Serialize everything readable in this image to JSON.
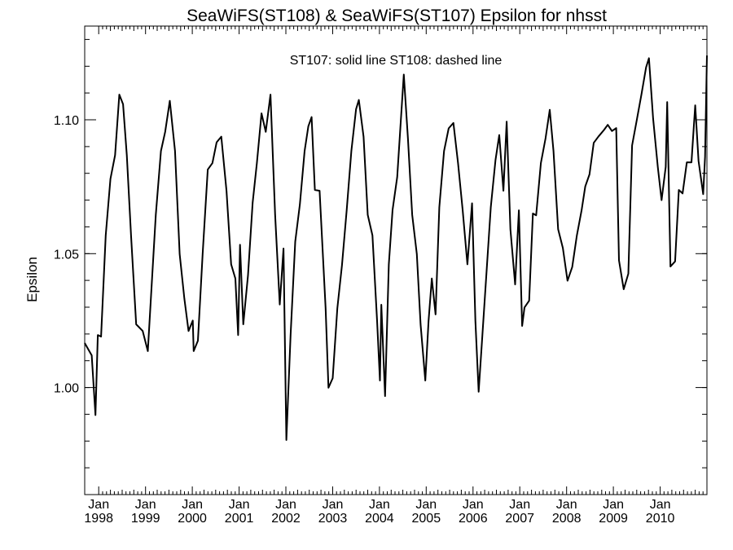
{
  "chart_data": {
    "type": "line",
    "title": "SeaWiFS(ST108) & SeaWiFS(ST107)  Epsilon for nhsst",
    "annotation": "ST107: solid line   ST108: dashed line",
    "xlabel": "",
    "ylabel": "Epsilon",
    "xlim": [
      1997.7,
      2011.0
    ],
    "ylim": [
      0.96,
      1.135
    ],
    "y_ticks": [
      1.0,
      1.05,
      1.1
    ],
    "y_tick_labels": [
      "1.00",
      "1.05",
      "1.10"
    ],
    "y_minor_step": 0.01,
    "x_ticks": [
      {
        "value": 1998,
        "month": "Jan",
        "year": "1998"
      },
      {
        "value": 1999,
        "month": "Jan",
        "year": "1999"
      },
      {
        "value": 2000,
        "month": "Jan",
        "year": "2000"
      },
      {
        "value": 2001,
        "month": "Jan",
        "year": "2001"
      },
      {
        "value": 2002,
        "month": "Jan",
        "year": "2002"
      },
      {
        "value": 2003,
        "month": "Jan",
        "year": "2003"
      },
      {
        "value": 2004,
        "month": "Jan",
        "year": "2004"
      },
      {
        "value": 2005,
        "month": "Jan",
        "year": "2005"
      },
      {
        "value": 2006,
        "month": "Jan",
        "year": "2006"
      },
      {
        "value": 2007,
        "month": "Jan",
        "year": "2007"
      },
      {
        "value": 2008,
        "month": "Jan",
        "year": "2008"
      },
      {
        "value": 2009,
        "month": "Jan",
        "year": "2009"
      },
      {
        "value": 2010,
        "month": "Jan",
        "year": "2010"
      }
    ],
    "grid": false,
    "series": [
      {
        "name": "ST107",
        "style": "solid",
        "color": "#000000",
        "points": [
          [
            1997.7,
            1.0166
          ],
          [
            1997.85,
            1.012
          ],
          [
            1997.93,
            0.9897
          ],
          [
            1997.98,
            1.0196
          ],
          [
            1998.05,
            1.019
          ],
          [
            1998.15,
            1.0568
          ],
          [
            1998.25,
            1.0779
          ],
          [
            1998.35,
            1.0868
          ],
          [
            1998.44,
            1.1094
          ],
          [
            1998.52,
            1.1058
          ],
          [
            1998.6,
            1.0868
          ],
          [
            1998.69,
            1.0568
          ],
          [
            1998.8,
            1.0236
          ],
          [
            1998.94,
            1.0211
          ],
          [
            1999.05,
            1.0136
          ],
          [
            1999.14,
            1.0407
          ],
          [
            1999.22,
            1.0645
          ],
          [
            1999.33,
            1.0883
          ],
          [
            1999.42,
            1.0955
          ],
          [
            1999.52,
            1.1071
          ],
          [
            1999.63,
            1.0883
          ],
          [
            1999.73,
            1.0498
          ],
          [
            1999.83,
            1.0331
          ],
          [
            1999.92,
            1.0211
          ],
          [
            2000.01,
            1.025
          ],
          [
            2000.03,
            1.0136
          ],
          [
            2000.12,
            1.0175
          ],
          [
            2000.22,
            1.0498
          ],
          [
            2000.33,
            1.0814
          ],
          [
            2000.43,
            1.0838
          ],
          [
            2000.52,
            1.0916
          ],
          [
            2000.62,
            1.0937
          ],
          [
            2000.73,
            1.0735
          ],
          [
            2000.83,
            1.046
          ],
          [
            2000.92,
            1.0407
          ],
          [
            2000.98,
            1.0196
          ],
          [
            2001.02,
            1.0533
          ],
          [
            2001.09,
            1.0236
          ],
          [
            2001.19,
            1.0419
          ],
          [
            2001.29,
            1.069
          ],
          [
            2001.38,
            1.0838
          ],
          [
            2001.48,
            1.1024
          ],
          [
            2001.57,
            1.0955
          ],
          [
            2001.67,
            1.1094
          ],
          [
            2001.77,
            1.0645
          ],
          [
            2001.87,
            1.031
          ],
          [
            2001.95,
            1.0519
          ],
          [
            2002.01,
            0.9804
          ],
          [
            2002.1,
            1.0196
          ],
          [
            2002.2,
            1.0545
          ],
          [
            2002.3,
            1.0684
          ],
          [
            2002.4,
            1.0883
          ],
          [
            2002.48,
            1.0976
          ],
          [
            2002.55,
            1.101
          ],
          [
            2002.62,
            1.0738
          ],
          [
            2002.72,
            1.0735
          ],
          [
            2002.85,
            1.0296
          ],
          [
            2002.91,
            0.9999
          ],
          [
            2003.0,
            1.0035
          ],
          [
            2003.1,
            1.0296
          ],
          [
            2003.2,
            1.0457
          ],
          [
            2003.3,
            1.0663
          ],
          [
            2003.4,
            1.0883
          ],
          [
            2003.5,
            1.104
          ],
          [
            2003.56,
            1.1074
          ],
          [
            2003.66,
            1.0937
          ],
          [
            2003.75,
            1.0645
          ],
          [
            2003.85,
            1.0568
          ],
          [
            2003.95,
            1.0249
          ],
          [
            2004.01,
            1.0026
          ],
          [
            2004.04,
            1.0309
          ],
          [
            2004.12,
            0.9968
          ],
          [
            2004.2,
            1.046
          ],
          [
            2004.28,
            1.0663
          ],
          [
            2004.38,
            1.0786
          ],
          [
            2004.45,
            1.0976
          ],
          [
            2004.52,
            1.1169
          ],
          [
            2004.61,
            1.0929
          ],
          [
            2004.7,
            1.0645
          ],
          [
            2004.8,
            1.0498
          ],
          [
            2004.88,
            1.0236
          ],
          [
            2004.98,
            1.0026
          ],
          [
            2005.05,
            1.0249
          ],
          [
            2005.12,
            1.0407
          ],
          [
            2005.2,
            1.0273
          ],
          [
            2005.28,
            1.0673
          ],
          [
            2005.38,
            1.0883
          ],
          [
            2005.48,
            1.0968
          ],
          [
            2005.58,
            1.0988
          ],
          [
            2005.68,
            1.0838
          ],
          [
            2005.78,
            1.0662
          ],
          [
            2005.88,
            1.046
          ],
          [
            2005.98,
            1.0688
          ],
          [
            2006.05,
            1.0249
          ],
          [
            2006.12,
            0.9984
          ],
          [
            2006.2,
            1.0196
          ],
          [
            2006.3,
            1.046
          ],
          [
            2006.38,
            1.0673
          ],
          [
            2006.48,
            1.085
          ],
          [
            2006.56,
            1.0943
          ],
          [
            2006.65,
            1.0735
          ],
          [
            2006.72,
            1.0993
          ],
          [
            2006.8,
            1.0591
          ],
          [
            2006.9,
            1.0385
          ],
          [
            2006.98,
            1.0662
          ],
          [
            2007.05,
            1.023
          ],
          [
            2007.1,
            1.0299
          ],
          [
            2007.2,
            1.0324
          ],
          [
            2007.28,
            1.065
          ],
          [
            2007.35,
            1.0643
          ],
          [
            2007.45,
            1.0838
          ],
          [
            2007.55,
            1.093
          ],
          [
            2007.64,
            1.1037
          ],
          [
            2007.72,
            1.0883
          ],
          [
            2007.82,
            1.0591
          ],
          [
            2007.92,
            1.0521
          ],
          [
            2008.02,
            1.0399
          ],
          [
            2008.12,
            1.045
          ],
          [
            2008.22,
            1.0568
          ],
          [
            2008.32,
            1.0662
          ],
          [
            2008.4,
            1.0751
          ],
          [
            2008.49,
            1.0796
          ],
          [
            2008.58,
            1.0914
          ],
          [
            2008.68,
            1.0937
          ],
          [
            2008.8,
            1.0962
          ],
          [
            2008.88,
            1.0981
          ],
          [
            2008.97,
            1.0958
          ],
          [
            2009.06,
            1.0969
          ],
          [
            2009.12,
            1.0475
          ],
          [
            2009.22,
            1.0367
          ],
          [
            2009.32,
            1.0425
          ],
          [
            2009.4,
            1.0904
          ],
          [
            2009.5,
            1.0998
          ],
          [
            2009.6,
            1.1095
          ],
          [
            2009.7,
            1.1196
          ],
          [
            2009.76,
            1.123
          ],
          [
            2009.85,
            1.1005
          ],
          [
            2009.95,
            1.0823
          ],
          [
            2010.03,
            1.07
          ],
          [
            2010.12,
            1.0824
          ],
          [
            2010.15,
            1.1066
          ],
          [
            2010.22,
            1.0452
          ],
          [
            2010.32,
            1.0471
          ],
          [
            2010.4,
            1.0738
          ],
          [
            2010.48,
            1.0725
          ],
          [
            2010.57,
            1.0841
          ],
          [
            2010.67,
            1.0841
          ],
          [
            2010.75,
            1.1054
          ],
          [
            2010.82,
            1.0846
          ],
          [
            2010.92,
            1.0722
          ],
          [
            2010.96,
            1.0862
          ],
          [
            2011.0,
            1.124
          ]
        ]
      }
    ]
  }
}
